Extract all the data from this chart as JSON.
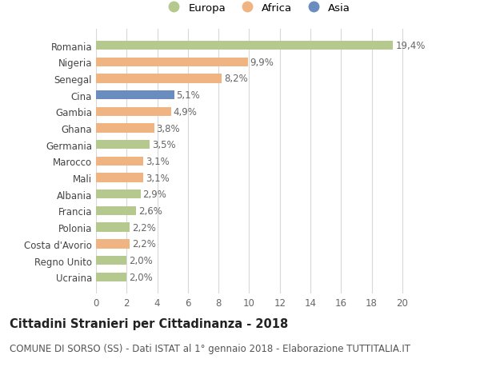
{
  "countries": [
    "Ucraina",
    "Regno Unito",
    "Costa d'Avorio",
    "Polonia",
    "Francia",
    "Albania",
    "Mali",
    "Marocco",
    "Germania",
    "Ghana",
    "Gambia",
    "Cina",
    "Senegal",
    "Nigeria",
    "Romania"
  ],
  "values": [
    2.0,
    2.0,
    2.2,
    2.2,
    2.6,
    2.9,
    3.1,
    3.1,
    3.5,
    3.8,
    4.9,
    5.1,
    8.2,
    9.9,
    19.4
  ],
  "labels": [
    "2,0%",
    "2,0%",
    "2,2%",
    "2,2%",
    "2,6%",
    "2,9%",
    "3,1%",
    "3,1%",
    "3,5%",
    "3,8%",
    "4,9%",
    "5,1%",
    "8,2%",
    "9,9%",
    "19,4%"
  ],
  "continents": [
    "Europa",
    "Europa",
    "Africa",
    "Europa",
    "Europa",
    "Europa",
    "Africa",
    "Africa",
    "Europa",
    "Africa",
    "Africa",
    "Asia",
    "Africa",
    "Africa",
    "Europa"
  ],
  "colors": {
    "Europa": "#b5c98e",
    "Africa": "#f0b482",
    "Asia": "#6b8cbf"
  },
  "xlim": [
    0,
    21
  ],
  "xticks": [
    0,
    2,
    4,
    6,
    8,
    10,
    12,
    14,
    16,
    18,
    20
  ],
  "title": "Cittadini Stranieri per Cittadinanza - 2018",
  "subtitle": "COMUNE DI SORSO (SS) - Dati ISTAT al 1° gennaio 2018 - Elaborazione TUTTITALIA.IT",
  "background_color": "#ffffff",
  "grid_color": "#d8d8d8",
  "bar_height": 0.55,
  "label_fontsize": 8.5,
  "tick_fontsize": 8.5,
  "ylabel_fontsize": 8.5,
  "title_fontsize": 10.5,
  "subtitle_fontsize": 8.5
}
